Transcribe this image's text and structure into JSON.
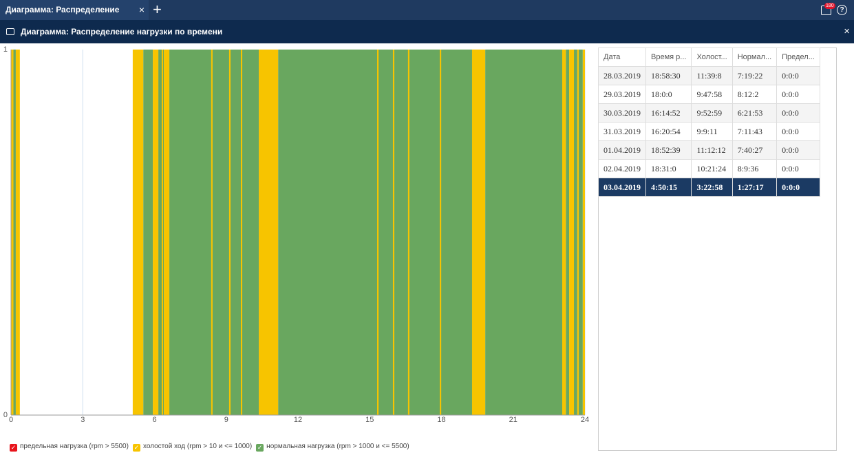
{
  "tabs": {
    "active": "Диаграмма: Распределение нагру...",
    "close": "×",
    "add": "+",
    "badge": "180",
    "help": "?"
  },
  "panel": {
    "title": "Диаграмма: Распределение нагрузки по времени",
    "close": "×"
  },
  "chart_data": {
    "type": "bands",
    "xlim": [
      0,
      24
    ],
    "xticks": [
      0,
      3,
      6,
      9,
      12,
      15,
      18,
      21,
      24
    ],
    "ylim": [
      0,
      1
    ],
    "yticks": [
      0,
      1
    ],
    "grid": true,
    "series": [
      {
        "name": "предельная нагрузка (rpm > 5500)",
        "color": "#e8141c",
        "starts": [],
        "ends": [],
        "values": []
      },
      {
        "name": "нормальная нагрузка (rpm > 1000 и <= 5500)",
        "color": "#69a75f",
        "starts": [
          0.1,
          5.53,
          6.16,
          6.62,
          11.17,
          19.83,
          23.2,
          23.54,
          23.74
        ],
        "ends": [
          0.2,
          5.93,
          6.39,
          10.36,
          19.28,
          23.05,
          23.34,
          23.68,
          23.91
        ],
        "values": [
          1,
          1,
          1,
          1,
          1,
          1,
          1,
          1,
          1
        ]
      },
      {
        "name": "холостой ход (rpm > 10 и <= 1000)",
        "color": "#f7c400",
        "starts": [
          0,
          0.2,
          5.09,
          5.93,
          6.3,
          6.39,
          8.37,
          9.12,
          9.61,
          10.36,
          15.31,
          15.97,
          16.6,
          17.93,
          19.28,
          23.05,
          23.34,
          23.68,
          23.91
        ],
        "ends": [
          0.1,
          0.37,
          5.53,
          6.16,
          6.36,
          6.62,
          8.43,
          9.18,
          9.67,
          11.17,
          15.37,
          16.03,
          16.66,
          17.99,
          19.83,
          23.2,
          23.54,
          23.74,
          24
        ],
        "values": [
          1,
          1,
          1,
          1,
          1,
          1,
          1,
          1,
          1,
          1,
          1,
          1,
          1,
          1,
          1,
          1,
          1,
          1,
          1
        ]
      }
    ],
    "legend_order": [
      0,
      2,
      1
    ]
  },
  "table": {
    "header": [
      "Дата",
      "Время р...",
      "Холост...",
      "Нормал...",
      "Предел..."
    ],
    "rows": [
      [
        "28.03.2019",
        "18:58:30",
        "11:39:8",
        "7:19:22",
        "0:0:0"
      ],
      [
        "29.03.2019",
        "18:0:0",
        "9:47:58",
        "8:12:2",
        "0:0:0"
      ],
      [
        "30.03.2019",
        "16:14:52",
        "9:52:59",
        "6:21:53",
        "0:0:0"
      ],
      [
        "31.03.2019",
        "16:20:54",
        "9:9:11",
        "7:11:43",
        "0:0:0"
      ],
      [
        "01.04.2019",
        "18:52:39",
        "11:12:12",
        "7:40:27",
        "0:0:0"
      ],
      [
        "02.04.2019",
        "18:31:0",
        "10:21:24",
        "8:9:36",
        "0:0:0"
      ],
      [
        "03.04.2019",
        "4:50:15",
        "3:22:58",
        "1:27:17",
        "0:0:0"
      ]
    ],
    "selected_row": 6
  }
}
